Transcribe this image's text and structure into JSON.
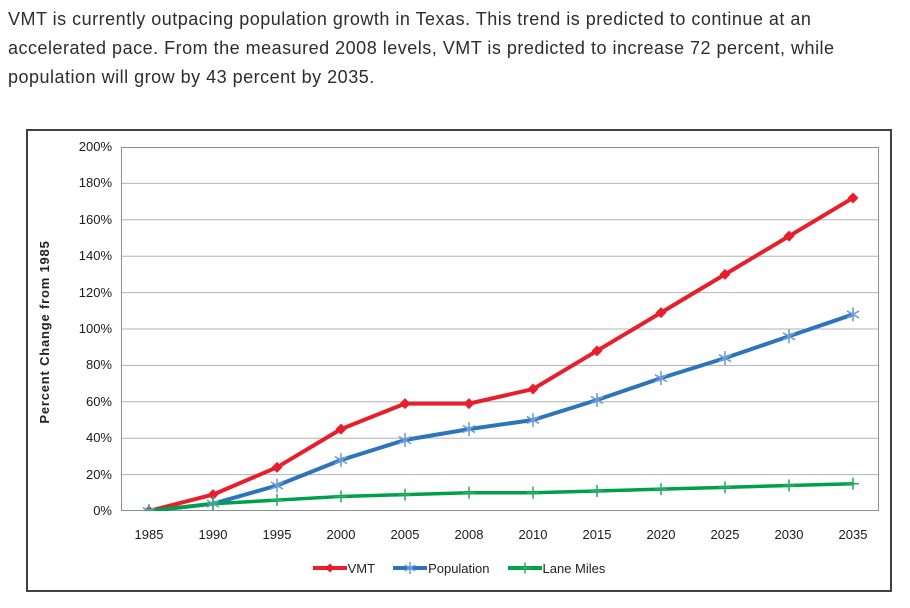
{
  "paragraph": {
    "lines": [
      "VMT is currently outpacing population growth in Texas. This trend is predicted to continue at an",
      "accelerated pace. From the measured 2008 levels, VMT is predicted to increase 72 percent, while",
      "population will grow by 43 percent by 2035."
    ]
  },
  "chart_data": {
    "type": "line",
    "title": "",
    "xlabel": "",
    "ylabel": "Percent Change from 1985",
    "ylim": [
      0,
      200
    ],
    "grid": "horizontal",
    "legend_position": "bottom",
    "categories": [
      "1985",
      "1990",
      "1995",
      "2000",
      "2005",
      "2008",
      "2010",
      "2015",
      "2020",
      "2025",
      "2030",
      "2035"
    ],
    "y_ticks": [
      "0%",
      "20%",
      "40%",
      "60%",
      "80%",
      "100%",
      "120%",
      "140%",
      "160%",
      "180%",
      "200%"
    ],
    "series": [
      {
        "name": "VMT",
        "marker": "diamond",
        "color": "#e81e2b",
        "marker_color": "#e81e2b",
        "values": [
          0,
          9,
          24,
          45,
          59,
          59,
          67,
          88,
          109,
          130,
          151,
          172
        ]
      },
      {
        "name": "Population",
        "marker": "asterisk",
        "color": "#2e74bb",
        "marker_color": "#6b9fd8",
        "values": [
          0,
          4,
          14,
          28,
          39,
          45,
          50,
          61,
          73,
          84,
          96,
          108
        ]
      },
      {
        "name": "Lane Miles",
        "marker": "plus",
        "color": "#00a04b",
        "marker_color": "#2cae65",
        "values": [
          0,
          4,
          6,
          8,
          9,
          10,
          10,
          11,
          12,
          13,
          14,
          15
        ]
      }
    ],
    "colors": {
      "gridline": "#b3b3b3",
      "plot_border": "#8f8f8f",
      "box_border": "#414141"
    }
  }
}
